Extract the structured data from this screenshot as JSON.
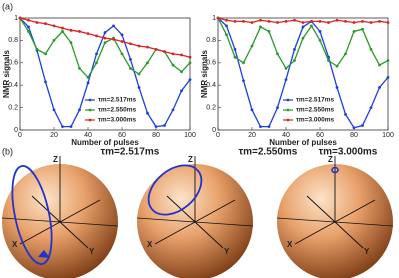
{
  "panel_labels": [
    "(a)",
    "(b)"
  ],
  "chart_data": [
    {
      "type": "line",
      "markers": true,
      "ylabel": "NMR signals",
      "xlabel": "Number of pulses",
      "legend": "lower center",
      "x": [
        0,
        5,
        10,
        15,
        20,
        25,
        30,
        35,
        40,
        45,
        50,
        55,
        60,
        65,
        70,
        75,
        80,
        85,
        90,
        95,
        100
      ],
      "xlim": [
        0,
        100
      ],
      "xticks": [
        0,
        20,
        40,
        60,
        80,
        100
      ],
      "ylim": [
        0,
        1
      ],
      "yticks": [
        0,
        0.2,
        0.4,
        0.6,
        0.8,
        1
      ],
      "series": [
        {
          "name": "τm=2.517ms",
          "color": "#1f3fdc",
          "values": [
            1,
            0.92,
            0.71,
            0.43,
            0.18,
            0.03,
            0.03,
            0.18,
            0.42,
            0.68,
            0.87,
            0.93,
            0.85,
            0.63,
            0.38,
            0.15,
            0.03,
            0.04,
            0.18,
            0.35,
            0.45
          ]
        },
        {
          "name": "τm=2.550ms",
          "color": "#2a9a2a",
          "values": [
            1,
            0.88,
            0.72,
            0.68,
            0.8,
            0.88,
            0.78,
            0.55,
            0.47,
            0.6,
            0.78,
            0.82,
            0.68,
            0.55,
            0.5,
            0.6,
            0.72,
            0.7,
            0.58,
            0.52,
            0.6
          ]
        },
        {
          "name": "τm=3.000ms",
          "color": "#e02020",
          "values": [
            1,
            0.98,
            0.96,
            0.95,
            0.93,
            0.91,
            0.89,
            0.88,
            0.86,
            0.84,
            0.82,
            0.81,
            0.79,
            0.77,
            0.75,
            0.74,
            0.72,
            0.7,
            0.68,
            0.67,
            0.65
          ]
        }
      ]
    },
    {
      "type": "line",
      "markers": true,
      "ylabel": "NMR signals",
      "xlabel": "Number of pulses",
      "legend": "lower center",
      "x": [
        0,
        5,
        10,
        15,
        20,
        25,
        30,
        35,
        40,
        45,
        50,
        55,
        60,
        65,
        70,
        75,
        80,
        85,
        90,
        95,
        100
      ],
      "xlim": [
        0,
        100
      ],
      "xticks": [
        0,
        20,
        40,
        60,
        80,
        100
      ],
      "ylim": [
        0,
        1
      ],
      "yticks": [
        0,
        0.2,
        0.4,
        0.6,
        0.8,
        1
      ],
      "series": [
        {
          "name": "τm=2.517ms",
          "color": "#1f3fdc",
          "values": [
            1,
            0.93,
            0.72,
            0.44,
            0.18,
            0.03,
            0.03,
            0.2,
            0.45,
            0.72,
            0.92,
            0.97,
            0.88,
            0.65,
            0.38,
            0.14,
            0.02,
            0.04,
            0.2,
            0.38,
            0.47
          ]
        },
        {
          "name": "τm=2.550ms",
          "color": "#2a9a2a",
          "values": [
            1,
            0.85,
            0.65,
            0.6,
            0.75,
            0.92,
            0.88,
            0.68,
            0.55,
            0.62,
            0.82,
            0.93,
            0.8,
            0.62,
            0.57,
            0.68,
            0.88,
            0.9,
            0.72,
            0.58,
            0.62
          ]
        },
        {
          "name": "τm=3.000ms",
          "color": "#e02020",
          "values": [
            1,
            0.98,
            0.97,
            0.97,
            0.96,
            0.98,
            0.97,
            0.96,
            0.97,
            0.98,
            0.96,
            0.97,
            0.97,
            0.96,
            0.98,
            0.97,
            0.96,
            0.97,
            0.96,
            0.97,
            0.96
          ]
        }
      ]
    }
  ],
  "spheres": [
    {
      "title": "τm=2.517ms",
      "axis_labels": [
        "Z",
        "X",
        "Y"
      ]
    },
    {
      "title": "τm=2.550ms",
      "axis_labels": [
        "Z",
        "X",
        "Y"
      ]
    },
    {
      "title": "τm=3.000ms",
      "axis_labels": [
        "Z",
        "X",
        "Y"
      ]
    }
  ]
}
